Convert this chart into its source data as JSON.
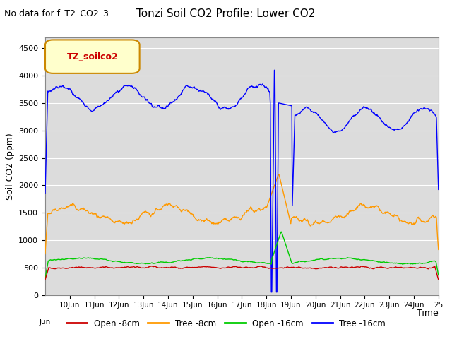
{
  "title": "Tonzi Soil CO2 Profile: Lower CO2",
  "subtitle": "No data for f_T2_CO2_3",
  "ylabel": "Soil CO2 (ppm)",
  "xlabel": "Time",
  "ylim": [
    0,
    4700
  ],
  "yticks": [
    0,
    500,
    1000,
    1500,
    2000,
    2500,
    3000,
    3500,
    4000,
    4500
  ],
  "xlim": [
    9,
    25
  ],
  "background_color": "#dcdcdc",
  "legend_label": "TZ_soilco2",
  "series": {
    "open_8cm": {
      "color": "#cc0000",
      "label": "Open -8cm"
    },
    "tree_8cm": {
      "color": "#ff9900",
      "label": "Tree -8cm"
    },
    "open_16cm": {
      "color": "#00cc00",
      "label": "Open -16cm"
    },
    "tree_16cm": {
      "color": "#0000ff",
      "label": "Tree -16cm"
    }
  }
}
